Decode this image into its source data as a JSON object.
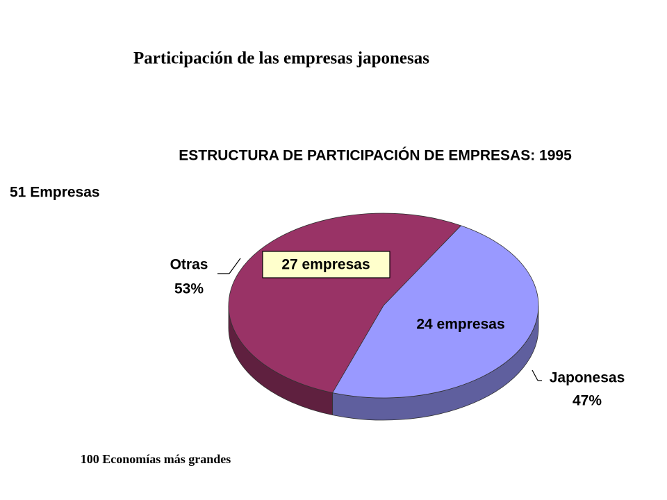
{
  "slide": {
    "title": "Participación de las empresas japonesas",
    "footnote": "100 Economías más grandes"
  },
  "chart_data": {
    "type": "pie",
    "title": "ESTRUCTURA DE PARTICIPACIÓN DE EMPRESAS: 1995",
    "total_label": "51 Empresas",
    "categories": [
      "Otras",
      "Japonesas"
    ],
    "values": [
      53,
      47
    ],
    "value_labels": [
      "53%",
      "47%"
    ],
    "segment_labels": [
      "27 empresas",
      "24 empresas"
    ],
    "colors": [
      "#993366",
      "#9999ff"
    ]
  }
}
